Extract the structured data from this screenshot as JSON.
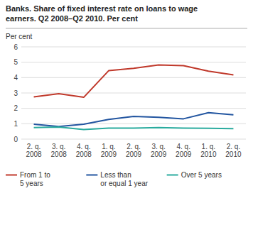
{
  "chart_data": {
    "type": "line",
    "title": "Banks. Share of fixed interest rate on loans to wage\nearners. Q2 2008–Q2 2010. Per cent",
    "ylabel": "Per cent",
    "categories": [
      "2. q.\n2008",
      "3. q.\n2008",
      "4. q.\n2008",
      "1. q.\n2009",
      "2. q.\n2009",
      "3. q.\n2009",
      "4. q.\n2009",
      "1. q.\n2010",
      "2. q.\n2010"
    ],
    "series": [
      {
        "name": "From 1 to\n5 years",
        "color": "#c0392b",
        "values": [
          2.75,
          2.95,
          2.72,
          4.45,
          4.6,
          4.82,
          4.78,
          4.42,
          4.18
        ]
      },
      {
        "name": "Less than\nor equal 1 year",
        "color": "#2255a0",
        "values": [
          0.97,
          0.82,
          0.97,
          1.28,
          1.48,
          1.42,
          1.32,
          1.72,
          1.58
        ]
      },
      {
        "name": "Over 5 years",
        "color": "#2aab9e",
        "values": [
          0.75,
          0.78,
          0.62,
          0.72,
          0.72,
          0.75,
          0.72,
          0.7,
          0.68
        ]
      }
    ],
    "ylim": [
      0,
      6
    ],
    "yticks": [
      0,
      1,
      2,
      3,
      4,
      5,
      6
    ],
    "grid": true,
    "legend": "bottom"
  }
}
